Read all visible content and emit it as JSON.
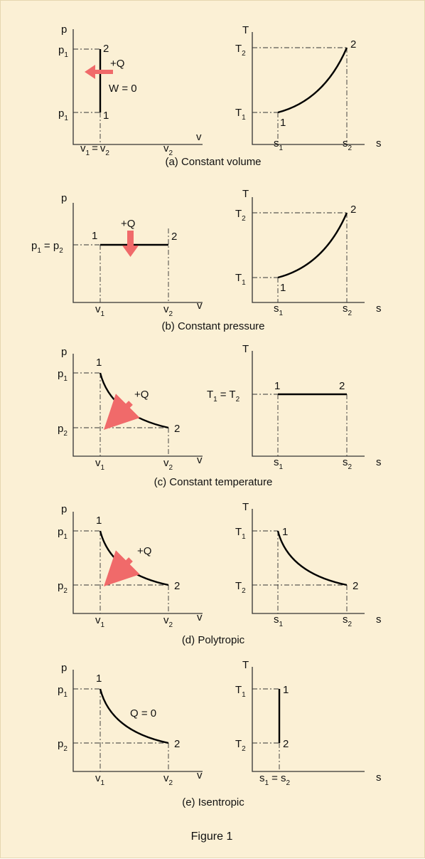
{
  "colors": {
    "background": "#fbf0d5",
    "arrow": "#f06a6a",
    "curve": "#000000"
  },
  "figure_caption": "Figure 1",
  "panels": {
    "a": {
      "caption": "(a) Constant volume",
      "pv": {
        "ax_p": "p",
        "ax_v": "v",
        "p1_top": "p",
        "p1_top_sub": "1",
        "p1_bot": "p",
        "p1_bot_sub": "1",
        "v1": "v",
        "v1_sub": "1",
        "eq": "=",
        "v2a": "v",
        "v2a_sub": "2",
        "v2b": "v",
        "v2b_sub": "2",
        "pt_top": "2",
        "pt_bot": "1",
        "heat": "+Q",
        "work": "W = 0"
      },
      "ts": {
        "ax_t": "T",
        "ax_s": "s",
        "t2": "T",
        "t2_sub": "2",
        "t1": "T",
        "t1_sub": "1",
        "s1": "s",
        "s1_sub": "1",
        "s2": "s",
        "s2_sub": "2",
        "pt1": "1",
        "pt2": "2"
      }
    },
    "b": {
      "caption": "(b) Constant pressure",
      "pv": {
        "ax_p": "p",
        "ax_v": "v",
        "p1": "p",
        "p1_sub": "1",
        "eq": "= p",
        "p2_sub": "2",
        "v1": "v",
        "v1_sub": "1",
        "v2": "v",
        "v2_sub": "2",
        "pt1": "1",
        "pt2": "2",
        "heat": "+Q"
      },
      "ts": {
        "ax_t": "T",
        "ax_s": "s",
        "t2": "T",
        "t2_sub": "2",
        "t1": "T",
        "t1_sub": "1",
        "s1": "s",
        "s1_sub": "1",
        "s2": "s",
        "s2_sub": "2",
        "pt1": "1",
        "pt2": "2"
      }
    },
    "c": {
      "caption": "(c) Constant temperature",
      "pv": {
        "ax_p": "p",
        "ax_v": "v",
        "p1": "p",
        "p1_sub": "1",
        "p2": "p",
        "p2_sub": "2",
        "v1": "v",
        "v1_sub": "1",
        "v2": "v",
        "v2_sub": "2",
        "pt1": "1",
        "pt2": "2",
        "heat": "+Q"
      },
      "ts": {
        "ax_t": "T",
        "ax_s": "s",
        "t1": "T",
        "t1_sub": "1",
        "eq": "= T",
        "t2_sub": "2",
        "s1": "s",
        "s1_sub": "1",
        "s2": "s",
        "s2_sub": "2",
        "pt1": "1",
        "pt2": "2"
      }
    },
    "d": {
      "caption": "(d) Polytropic",
      "pv": {
        "ax_p": "p",
        "ax_v": "v",
        "p1": "p",
        "p1_sub": "1",
        "p2": "p",
        "p2_sub": "2",
        "v1": "v",
        "v1_sub": "1",
        "v2": "v",
        "v2_sub": "2",
        "pt1": "1",
        "pt2": "2",
        "heat": "+Q"
      },
      "ts": {
        "ax_t": "T",
        "ax_s": "s",
        "t1": "T",
        "t1_sub": "1",
        "t2": "T",
        "t2_sub": "2",
        "s1": "s",
        "s1_sub": "1",
        "s2": "s",
        "s2_sub": "2",
        "pt1": "1",
        "pt2": "2"
      }
    },
    "e": {
      "caption": "(e) Isentropic",
      "pv": {
        "ax_p": "p",
        "ax_v": "v",
        "p1": "p",
        "p1_sub": "1",
        "p2": "p",
        "p2_sub": "2",
        "v1": "v",
        "v1_sub": "1",
        "v2": "v",
        "v2_sub": "2",
        "pt1": "1",
        "pt2": "2",
        "heat": "Q = 0"
      },
      "ts": {
        "ax_t": "T",
        "ax_s": "s",
        "t1": "T",
        "t1_sub": "1",
        "t2": "T",
        "t2_sub": "2",
        "s1": "s",
        "s1_sub": "1",
        "eq": "= s",
        "s2_sub": "2",
        "pt1": "1",
        "pt2": "2"
      }
    }
  }
}
